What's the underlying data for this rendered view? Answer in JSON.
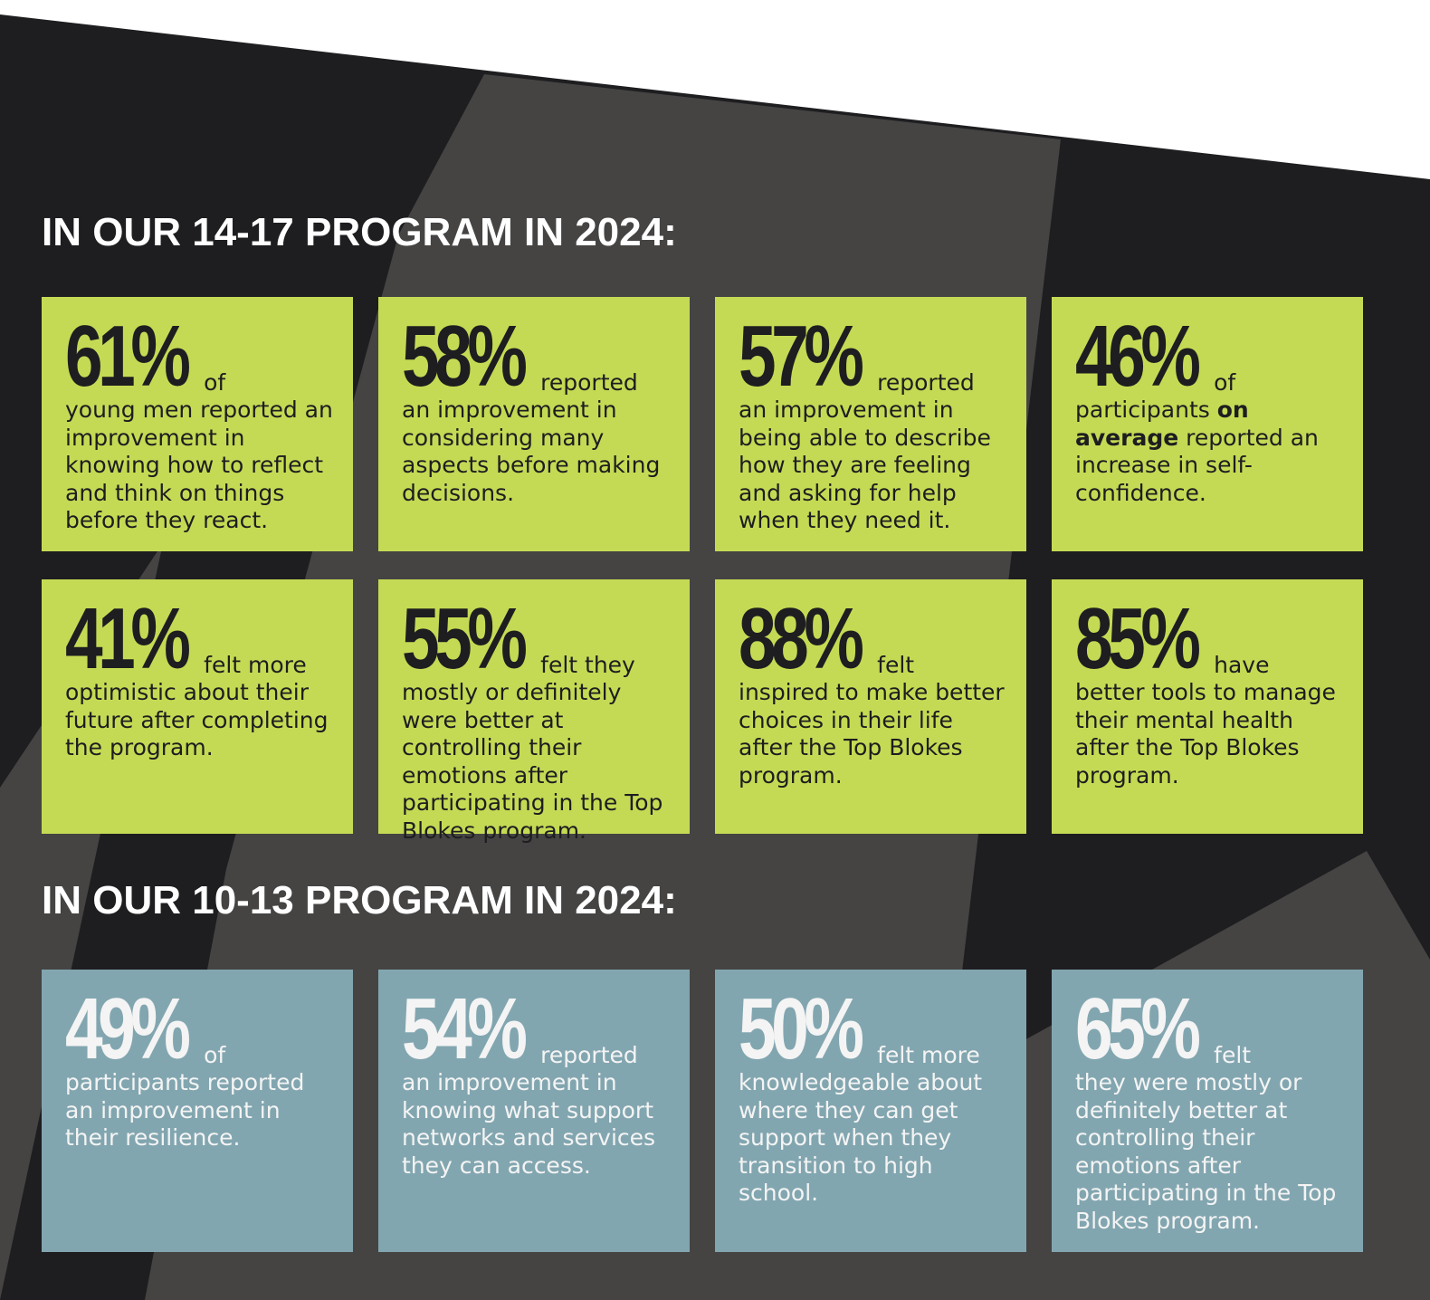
{
  "sections": [
    {
      "heading": "IN OUR 14-17 PROGRAM IN 2024:",
      "cards": [
        {
          "stat": "61%",
          "lead": "of",
          "body": [
            "young men reported an improvement in knowing how to reflect and think on things before they react."
          ]
        },
        {
          "stat": "58%",
          "lead": "reported",
          "body": [
            "an improvement in considering many aspects before making decisions."
          ]
        },
        {
          "stat": "57%",
          "lead": "reported",
          "body": [
            "an improvement in being able to describe how they are feeling and asking for help when they need it."
          ]
        },
        {
          "stat": "46%",
          "lead": "of",
          "body": [
            "participants",
            {
              "strong": "on average"
            },
            "reported an increase in self-confidence."
          ]
        },
        {
          "stat": "41%",
          "lead": "felt more",
          "body": [
            "optimistic about their future after completing the program."
          ]
        },
        {
          "stat": "55%",
          "lead": "felt they",
          "body": [
            "mostly or definitely were better at controlling their emotions after participating in the Top Blokes program."
          ]
        },
        {
          "stat": "88%",
          "lead": "felt",
          "body": [
            "inspired to make better choices in their life after the Top Blokes program."
          ]
        },
        {
          "stat": "85%",
          "lead": "have",
          "body": [
            "better tools to manage their mental health after the Top Blokes program."
          ]
        }
      ]
    },
    {
      "heading": "IN OUR 10-13 PROGRAM IN 2024:",
      "cards": [
        {
          "stat": "49%",
          "lead": "of",
          "body": [
            "participants reported an improvement in their resilience."
          ]
        },
        {
          "stat": "54%",
          "lead": "reported",
          "body": [
            "an improvement in knowing what support networks and services they can access."
          ]
        },
        {
          "stat": "50%",
          "lead": "felt more",
          "body": [
            "knowledgeable about where they can get support when they transition to high school."
          ]
        },
        {
          "stat": "65%",
          "lead": "felt",
          "body": [
            "they were mostly or definitely better at controlling their emotions after participating in the Top Blokes program."
          ]
        }
      ]
    }
  ]
}
